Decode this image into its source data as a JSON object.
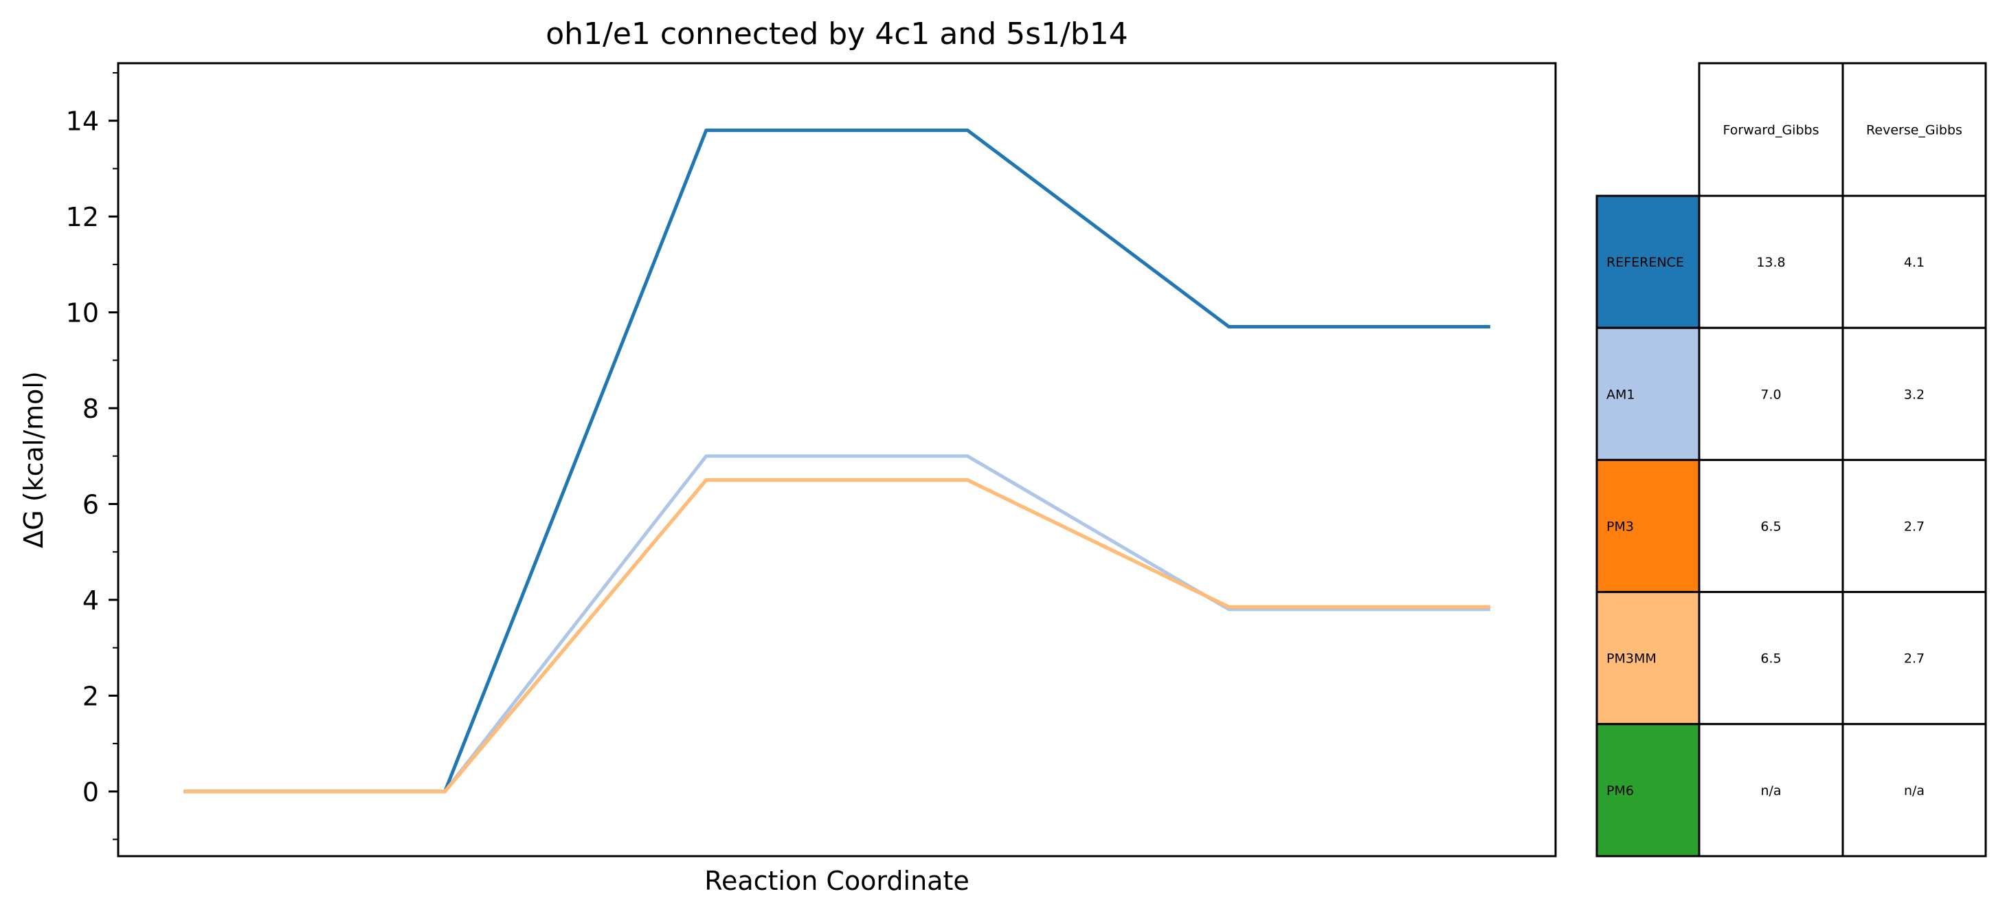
{
  "chart_data": {
    "type": "line",
    "title": "oh1/e1 connected by 4c1 and 5s1/b14",
    "xlabel": "Reaction Coordinate",
    "ylabel": "ΔG (kcal/mol)",
    "ylim": [
      -1.35,
      15.2
    ],
    "yticks": [
      0,
      2,
      4,
      6,
      8,
      10,
      12,
      14
    ],
    "grid": false,
    "x": [
      0,
      1,
      2,
      3,
      4,
      5
    ],
    "xlim": [
      -0.25,
      5.25
    ],
    "series": [
      {
        "name": "REFERENCE",
        "color": "#1f77b4",
        "values": [
          0,
          0,
          13.8,
          13.8,
          9.7,
          9.7
        ]
      },
      {
        "name": "AM1",
        "color": "#aec7e8",
        "values": [
          0,
          0,
          7.0,
          7.0,
          3.8,
          3.8
        ]
      },
      {
        "name": "PM3",
        "color": "#ff7f0e",
        "values": [
          0,
          0,
          6.5,
          6.5,
          3.85,
          3.85
        ]
      },
      {
        "name": "PM3MM",
        "color": "#ffbb78",
        "values": [
          0,
          0,
          6.5,
          6.5,
          3.85,
          3.85
        ]
      }
    ],
    "table": {
      "columns": [
        "Forward_Gibbs",
        "Reverse_Gibbs"
      ],
      "rows": [
        {
          "label": "REFERENCE",
          "color": "#1f77b4",
          "values": [
            "13.8",
            "4.1"
          ]
        },
        {
          "label": "AM1",
          "color": "#aec7e8",
          "values": [
            "7.0",
            "3.2"
          ]
        },
        {
          "label": "PM3",
          "color": "#ff7f0e",
          "values": [
            "6.5",
            "2.7"
          ]
        },
        {
          "label": "PM3MM",
          "color": "#ffbb78",
          "values": [
            "6.5",
            "2.7"
          ]
        },
        {
          "label": "PM6",
          "color": "#2ca02c",
          "values": [
            "n/a",
            "n/a"
          ]
        }
      ]
    }
  }
}
